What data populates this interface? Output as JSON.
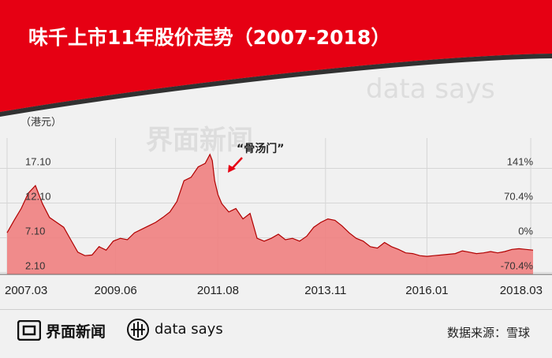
{
  "header": {
    "title": "味千上市11年股价走势（2007-2018）"
  },
  "colors": {
    "header_red": "#e60013",
    "area_fill": "#f08080",
    "area_line": "#b00000",
    "arrow": "#e60013",
    "label_text": "#333333"
  },
  "watermark": {
    "brand_cn": "界面新闻",
    "brand_en": "data says"
  },
  "chart_data": {
    "type": "area",
    "unit_label": "（港元）",
    "y_ticks_left": [
      "17.10",
      "12.10",
      "7.10",
      "2.10"
    ],
    "y_ticks_right": [
      "141%",
      "70.4%",
      "0%",
      "-70.4%"
    ],
    "x_ticks": [
      "2007.03",
      "2009.06",
      "2011.08",
      "2013.11",
      "2016.01",
      "2018.03"
    ],
    "annotation": {
      "text": "“骨汤门”",
      "x": 2011.6,
      "y": 16.5
    },
    "ylim": [
      0,
      20
    ],
    "grid": true,
    "x": [
      2007.15,
      2007.3,
      2007.45,
      2007.6,
      2007.75,
      2007.9,
      2008.05,
      2008.2,
      2008.35,
      2008.5,
      2008.65,
      2008.8,
      2008.95,
      2009.1,
      2009.25,
      2009.4,
      2009.55,
      2009.7,
      2009.85,
      2010.0,
      2010.15,
      2010.3,
      2010.45,
      2010.6,
      2010.75,
      2010.9,
      2011.05,
      2011.2,
      2011.35,
      2011.45,
      2011.5,
      2011.55,
      2011.62,
      2011.7,
      2011.85,
      2012.0,
      2012.15,
      2012.3,
      2012.45,
      2012.6,
      2012.75,
      2012.9,
      2013.05,
      2013.2,
      2013.35,
      2013.5,
      2013.65,
      2013.8,
      2013.95,
      2014.1,
      2014.25,
      2014.4,
      2014.55,
      2014.7,
      2014.85,
      2015.0,
      2015.15,
      2015.3,
      2015.45,
      2015.6,
      2015.75,
      2015.9,
      2016.05,
      2016.2,
      2016.35,
      2016.5,
      2016.65,
      2016.8,
      2016.95,
      2017.1,
      2017.25,
      2017.4,
      2017.55,
      2017.7,
      2017.85,
      2018.0,
      2018.15,
      2018.3
    ],
    "values": [
      6.0,
      7.8,
      9.5,
      11.7,
      12.8,
      10.2,
      8.2,
      7.5,
      6.8,
      5.0,
      3.2,
      2.7,
      2.8,
      4.0,
      3.5,
      4.8,
      5.2,
      5.0,
      6.0,
      6.5,
      7.0,
      7.5,
      8.2,
      9.0,
      10.5,
      13.5,
      14.0,
      15.5,
      16.0,
      17.3,
      16.4,
      13.5,
      11.5,
      10.2,
      9.0,
      9.5,
      8.0,
      8.8,
      5.2,
      4.8,
      5.2,
      5.8,
      5.0,
      5.2,
      4.8,
      5.5,
      6.8,
      7.5,
      8.0,
      7.8,
      7.0,
      6.0,
      5.2,
      4.8,
      4.0,
      3.8,
      4.6,
      4.0,
      3.6,
      3.1,
      3.0,
      2.7,
      2.6,
      2.7,
      2.8,
      2.9,
      3.0,
      3.4,
      3.2,
      3.0,
      3.1,
      3.3,
      3.1,
      3.3,
      3.6,
      3.7,
      3.6,
      3.5
    ]
  },
  "footer": {
    "brand_cn": "界面新闻",
    "brand_en": "data says",
    "source": "数据来源：雪球"
  }
}
